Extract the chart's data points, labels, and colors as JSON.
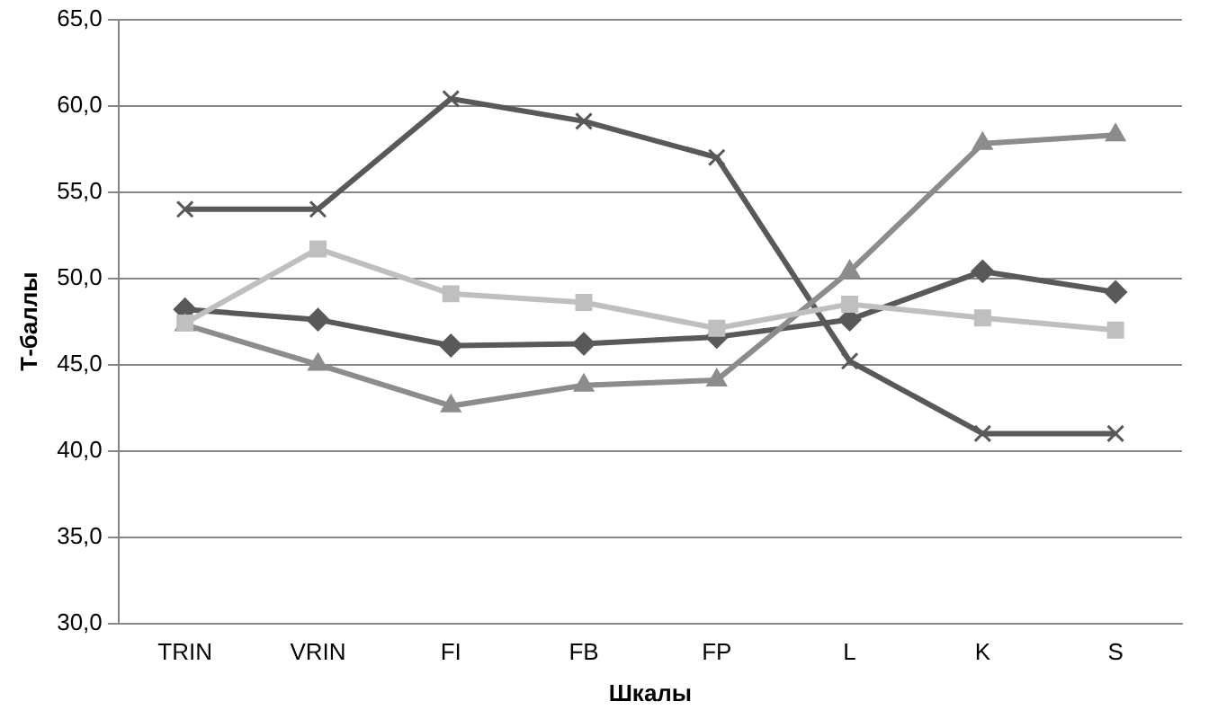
{
  "chart_data": {
    "type": "line",
    "xlabel": "Шкалы",
    "ylabel": "Т-баллы",
    "categories": [
      "TRIN",
      "VRIN",
      "FI",
      "FB",
      "FP",
      "L",
      "K",
      "S"
    ],
    "series": [
      {
        "color": "#595959",
        "marker": "cross",
        "values": [
          54.0,
          54.0,
          60.4,
          59.1,
          57.0,
          45.2,
          41.0,
          41.0
        ]
      },
      {
        "color": "#595959",
        "marker": "diamond",
        "values": [
          48.2,
          47.6,
          46.1,
          46.2,
          46.6,
          47.6,
          50.4,
          49.2
        ]
      },
      {
        "color": "#8c8c8c",
        "marker": "triangle",
        "values": [
          47.3,
          45.0,
          42.6,
          43.8,
          44.1,
          50.4,
          57.8,
          58.3
        ]
      },
      {
        "color": "#bfbfbf",
        "marker": "square",
        "values": [
          47.4,
          51.7,
          49.1,
          48.6,
          47.1,
          48.5,
          47.7,
          47.0
        ]
      }
    ],
    "ylim": [
      30,
      65
    ],
    "yticks": [
      {
        "value": 30,
        "label": "30,0"
      },
      {
        "value": 35,
        "label": "35,0"
      },
      {
        "value": 40,
        "label": "40,0"
      },
      {
        "value": 45,
        "label": "45,0"
      },
      {
        "value": 50,
        "label": "50,0"
      },
      {
        "value": 55,
        "label": "55,0"
      },
      {
        "value": 60,
        "label": "60,0"
      },
      {
        "value": 65,
        "label": "65,0"
      }
    ],
    "grid": "y",
    "legend": false
  }
}
